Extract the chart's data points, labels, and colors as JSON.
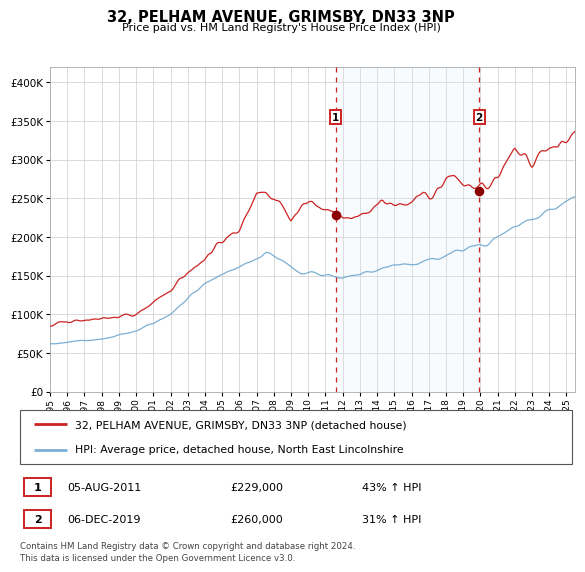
{
  "title": "32, PELHAM AVENUE, GRIMSBY, DN33 3NP",
  "subtitle": "Price paid vs. HM Land Registry's House Price Index (HPI)",
  "hpi_color": "#7bafd4",
  "price_color": "#cc2222",
  "marker_color": "#8b0000",
  "bg_color": "#dce9f5",
  "ylim": [
    0,
    420000
  ],
  "yticks": [
    0,
    50000,
    100000,
    150000,
    200000,
    250000,
    300000,
    350000,
    400000
  ],
  "ytick_labels": [
    "£0",
    "£50K",
    "£100K",
    "£150K",
    "£200K",
    "£250K",
    "£300K",
    "£350K",
    "£400K"
  ],
  "sale1_date": "05-AUG-2011",
  "sale1_year": 2011.6,
  "sale1_price": 229000,
  "sale1_label": "£229,000",
  "sale1_pct": "43% ↑ HPI",
  "sale2_date": "06-DEC-2019",
  "sale2_year": 2019.92,
  "sale2_price": 260000,
  "sale2_label": "£260,000",
  "sale2_pct": "31% ↑ HPI",
  "legend_line1": "32, PELHAM AVENUE, GRIMSBY, DN33 3NP (detached house)",
  "legend_line2": "HPI: Average price, detached house, North East Lincolnshire",
  "footer": "Contains HM Land Registry data © Crown copyright and database right 2024.\nThis data is licensed under the Open Government Licence v3.0.",
  "xstart": 1995,
  "xend": 2025.5
}
